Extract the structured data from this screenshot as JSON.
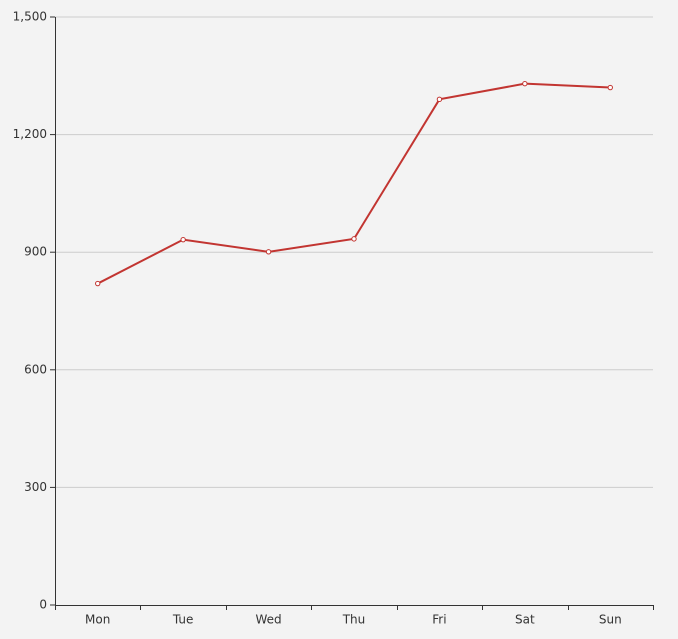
{
  "chart_data": {
    "type": "line",
    "categories": [
      "Mon",
      "Tue",
      "Wed",
      "Thu",
      "Fri",
      "Sat",
      "Sun"
    ],
    "values": [
      820,
      932,
      901,
      934,
      1290,
      1330,
      1320
    ],
    "color": "#c23531",
    "ylim": [
      0,
      1500
    ],
    "yticks": [
      0,
      300,
      600,
      900,
      {
        "value": 1200,
        "label": "1,200"
      },
      {
        "value": 1500,
        "label": "1,500"
      }
    ],
    "grid": true
  }
}
